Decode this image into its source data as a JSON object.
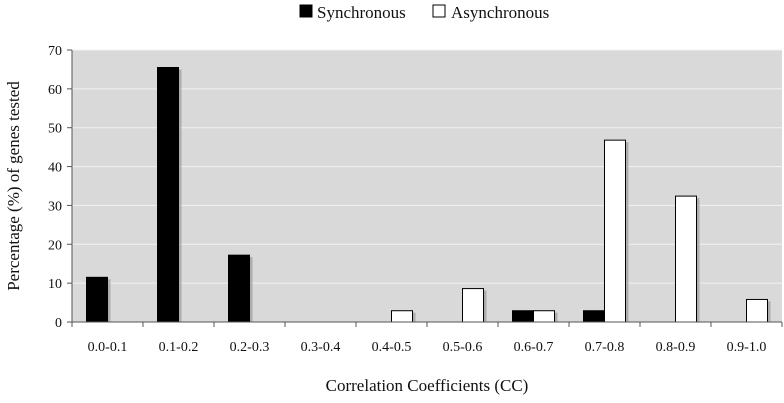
{
  "chart_data": {
    "type": "bar",
    "categories": [
      "0.0-0.1",
      "0.1-0.2",
      "0.2-0.3",
      "0.3-0.4",
      "0.4-0.5",
      "0.5-0.6",
      "0.6-0.7",
      "0.7-0.8",
      "0.8-0.9",
      "0.9-1.0"
    ],
    "series": [
      {
        "name": "Synchronous",
        "color": "#000000",
        "values": [
          11.5,
          65.5,
          17.2,
          0,
          0,
          0,
          2.9,
          2.9,
          0,
          0
        ]
      },
      {
        "name": "Asynchronous",
        "color": "#ffffff",
        "values": [
          0,
          0,
          0,
          0,
          2.9,
          8.6,
          2.9,
          46.8,
          32.4,
          5.8
        ]
      }
    ],
    "xlabel": "Correlation Coefficients (CC)",
    "ylabel": "Percentage (%) of genes tested",
    "ylim": [
      0,
      70
    ],
    "yticks": [
      0,
      10,
      20,
      30,
      40,
      50,
      60,
      70
    ],
    "grid": true,
    "legend_position": "top-center",
    "plot_background": "#d9d9d9"
  }
}
